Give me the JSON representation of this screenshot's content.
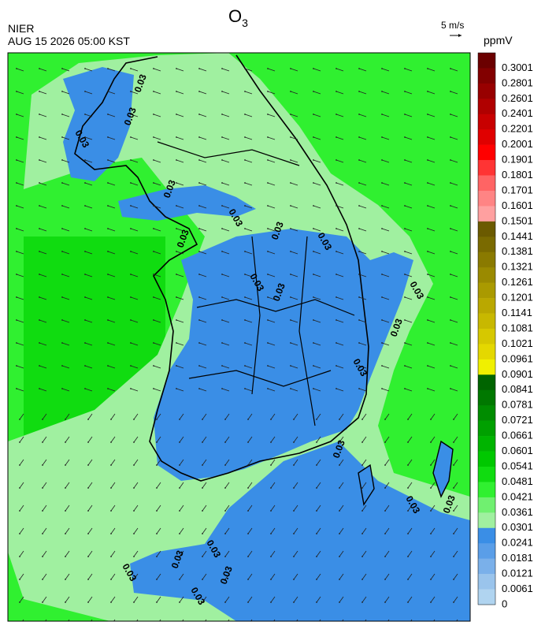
{
  "header": {
    "title": "O",
    "title_subscript": "3",
    "agency": "NIER",
    "datetime": "AUG 15 2026 05:00 KST",
    "wind_reference": "5 m/s"
  },
  "colorbar": {
    "unit": "ppmV",
    "levels": [
      {
        "label": "0.3001",
        "color": "#6b0000"
      },
      {
        "label": "0.2801",
        "color": "#820000"
      },
      {
        "label": "0.2601",
        "color": "#980000"
      },
      {
        "label": "0.2401",
        "color": "#b00000"
      },
      {
        "label": "0.2201",
        "color": "#c80000"
      },
      {
        "label": "0.2001",
        "color": "#e00000"
      },
      {
        "label": "0.1901",
        "color": "#ff0000"
      },
      {
        "label": "0.1801",
        "color": "#ff3434"
      },
      {
        "label": "0.1701",
        "color": "#ff6464"
      },
      {
        "label": "0.1601",
        "color": "#ff8484"
      },
      {
        "label": "0.1501",
        "color": "#ffa0a0"
      },
      {
        "label": "0.1441",
        "color": "#6b5a00"
      },
      {
        "label": "0.1381",
        "color": "#7a6a00"
      },
      {
        "label": "0.1321",
        "color": "#8a7a00"
      },
      {
        "label": "0.1261",
        "color": "#9a8a00"
      },
      {
        "label": "0.1201",
        "color": "#aa9a00"
      },
      {
        "label": "0.1141",
        "color": "#baa800"
      },
      {
        "label": "0.1081",
        "color": "#c8b800"
      },
      {
        "label": "0.1021",
        "color": "#d6c800"
      },
      {
        "label": "0.0961",
        "color": "#e4d800"
      },
      {
        "label": "0.0901",
        "color": "#f0f000"
      },
      {
        "label": "0.0841",
        "color": "#006400"
      },
      {
        "label": "0.0781",
        "color": "#007800"
      },
      {
        "label": "0.0721",
        "color": "#008c00"
      },
      {
        "label": "0.0661",
        "color": "#00a000"
      },
      {
        "label": "0.0601",
        "color": "#00b400"
      },
      {
        "label": "0.0541",
        "color": "#00c800"
      },
      {
        "label": "0.0481",
        "color": "#10dc10"
      },
      {
        "label": "0.0421",
        "color": "#30f030"
      },
      {
        "label": "0.0361",
        "color": "#70f070"
      },
      {
        "label": "0.0301",
        "color": "#a0f0a0"
      },
      {
        "label": "0.0241",
        "color": "#3a8ee6"
      },
      {
        "label": "0.0181",
        "color": "#5a9ee8"
      },
      {
        "label": "0.0121",
        "color": "#7ab0ea"
      },
      {
        "label": "0.0061",
        "color": "#9ac4ec"
      },
      {
        "label": "0",
        "color": "#b0d4f0"
      }
    ]
  },
  "map": {
    "contour_label": "0.03"
  }
}
